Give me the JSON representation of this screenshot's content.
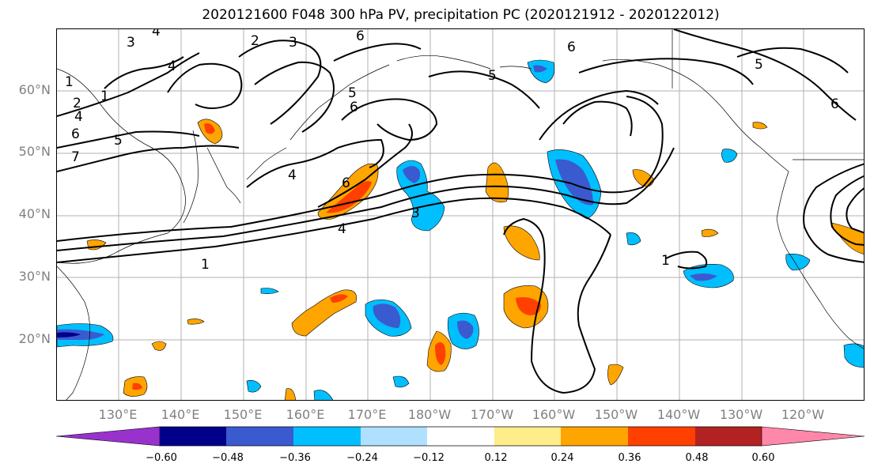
{
  "title": "2020121600 F048 300 hPa PV, precipitation PC (2020121912 - 2020122012)",
  "lat_labels": [
    "60°N",
    "50°N",
    "40°N",
    "30°N",
    "20°N"
  ],
  "lon_labels": [
    "130°E",
    "140°E",
    "150°E",
    "160°E",
    "170°E",
    "180°W",
    "170°W",
    "160°W",
    "150°W",
    "140°W",
    "130°W",
    "120°W"
  ],
  "map_extent": {
    "lon_min": 120,
    "lon_max": 250.5,
    "lat_min": 10,
    "lat_max": 70
  },
  "contour_labels": [
    "3",
    "4",
    "2",
    "3",
    "6",
    "6",
    "4",
    "5",
    "1",
    "1",
    "2",
    "4",
    "6",
    "5",
    "7",
    "5",
    "6",
    "4",
    "6",
    "3",
    "4",
    "1",
    "5",
    "6",
    "1"
  ],
  "colorbar": {
    "ticks": [
      "−0.60",
      "−0.48",
      "−0.36",
      "−0.24",
      "−0.12",
      "0.12",
      "0.24",
      "0.36",
      "0.48",
      "0.60"
    ],
    "colors": [
      "#9932cc",
      "#00008b",
      "#3a5bcf",
      "#00bfff",
      "#b0e0ff",
      "#ffffff",
      "#ffec8b",
      "#ffa500",
      "#ff4000",
      "#b22222",
      "#ff88aa"
    ]
  }
}
